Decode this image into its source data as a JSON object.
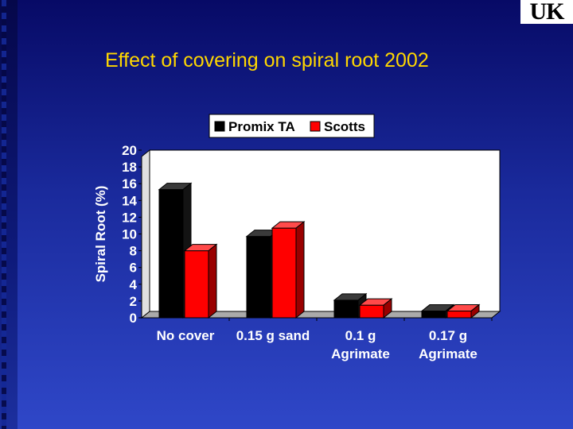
{
  "logo": {
    "text": "UK"
  },
  "slide": {
    "title": "Effect of covering on spiral root 2002"
  },
  "colors": {
    "series1": "#000000",
    "series2": "#ff0000",
    "title": "#ffd700",
    "axis_text": "#ffffff",
    "wall": "#ffffff",
    "floor": "#aaaaaa"
  },
  "chart_data": {
    "type": "bar",
    "title": "Effect of covering on spiral root 2002",
    "xlabel": "",
    "ylabel": "Spiral Root (%)",
    "ylim": [
      0,
      20
    ],
    "yticks": [
      0,
      2,
      4,
      6,
      8,
      10,
      12,
      14,
      16,
      18,
      20
    ],
    "categories": [
      [
        "No cover"
      ],
      [
        "0.15 g sand"
      ],
      [
        "0.1 g",
        "Agrimate"
      ],
      [
        "0.17 g",
        "Agrimate"
      ]
    ],
    "series": [
      {
        "name": "Promix TA",
        "values": [
          15.3,
          9.7,
          2.1,
          0.8
        ]
      },
      {
        "name": "Scotts",
        "values": [
          8.0,
          10.7,
          1.5,
          0.8
        ]
      }
    ],
    "legend": "top-center",
    "grid": false
  }
}
